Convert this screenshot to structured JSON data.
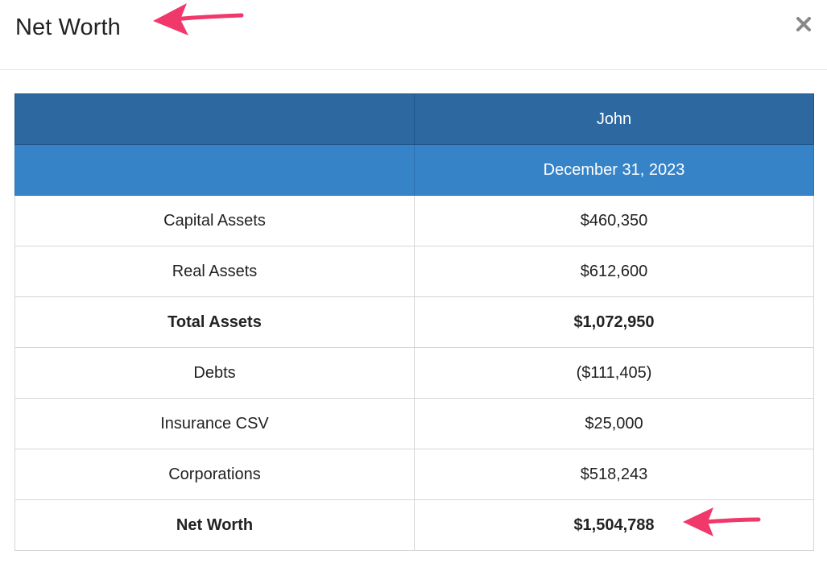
{
  "modal": {
    "title": "Net Worth",
    "close_icon": "close-icon"
  },
  "colors": {
    "header_dark": "#2d68a1",
    "header_light": "#3783c7",
    "annotation_arrow": "#f0386b"
  },
  "table": {
    "person_name": "John",
    "as_of_date": "December 31, 2023",
    "rows": [
      {
        "label": "Capital Assets",
        "value": "$460,350",
        "bold": false
      },
      {
        "label": "Real Assets",
        "value": "$612,600",
        "bold": false
      },
      {
        "label": "Total Assets",
        "value": "$1,072,950",
        "bold": true
      },
      {
        "label": "Debts",
        "value": "($111,405)",
        "bold": false
      },
      {
        "label": "Insurance CSV",
        "value": "$25,000",
        "bold": false
      },
      {
        "label": "Corporations",
        "value": "$518,243",
        "bold": false
      },
      {
        "label": "Net Worth",
        "value": "$1,504,788",
        "bold": true
      }
    ]
  }
}
